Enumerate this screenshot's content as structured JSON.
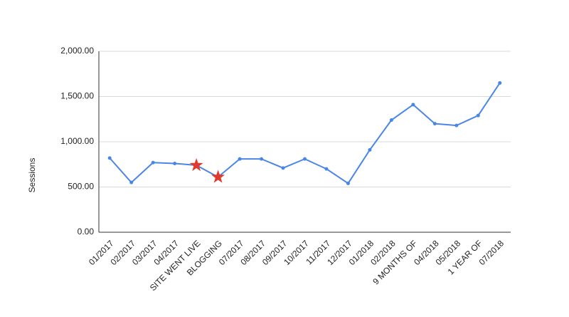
{
  "chart_data": {
    "type": "line",
    "y_label": "Sessions",
    "categories": [
      "01/2017",
      "02/2017",
      "03/2017",
      "04/2017",
      "SITE WENT LIVE",
      "BLOGGING",
      "07/2017",
      "08/2017",
      "09/2017",
      "10/2017",
      "11/2017",
      "12/2017",
      "01/2018",
      "02/2018",
      "9 MONTHS OF",
      "04/2018",
      "05/2018",
      "1 YEAR OF",
      "07/2018"
    ],
    "values": [
      820,
      550,
      770,
      760,
      740,
      610,
      810,
      810,
      710,
      810,
      700,
      540,
      910,
      1240,
      1410,
      1200,
      1180,
      1290,
      1650
    ],
    "color": "#4a86e8",
    "highlight_indices": [
      4,
      5
    ],
    "highlight_color": "#e03a2e",
    "ylim": [
      0,
      2000
    ],
    "yticks": [
      {
        "value": 0,
        "label": "0.00"
      },
      {
        "value": 500,
        "label": "500.00"
      },
      {
        "value": 1000,
        "label": "1,000.00"
      },
      {
        "value": 1500,
        "label": "1,500.00"
      },
      {
        "value": 2000,
        "label": "2,000.00"
      }
    ],
    "grid": true
  }
}
